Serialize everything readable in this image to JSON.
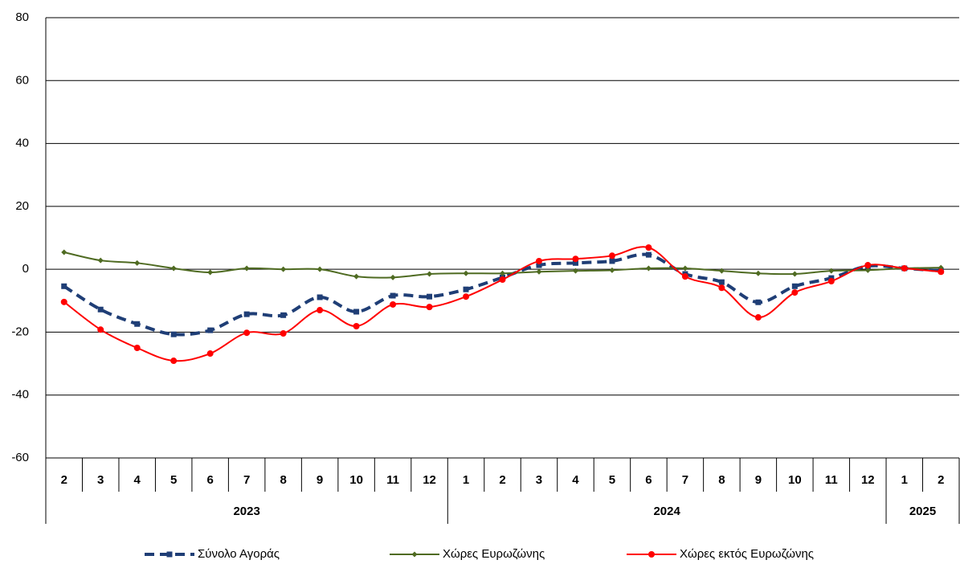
{
  "chart_data": {
    "type": "line",
    "categories": [
      "2",
      "3",
      "4",
      "5",
      "6",
      "7",
      "8",
      "9",
      "10",
      "11",
      "12",
      "1",
      "2",
      "3",
      "4",
      "5",
      "6",
      "7",
      "8",
      "9",
      "10",
      "11",
      "12",
      "1",
      "2"
    ],
    "x_groups": [
      "2023",
      "2024",
      "2025"
    ],
    "series": [
      {
        "name": "Σύνολο Αγοράς",
        "color": "#1f3e76",
        "marker": "square",
        "dash": true,
        "values": [
          -5.4,
          -12.8,
          -17.4,
          -20.7,
          -19.4,
          -14.3,
          -14.6,
          -8.9,
          -13.5,
          -8.4,
          -8.7,
          -6.4,
          -2.6,
          1.3,
          2.0,
          2.6,
          4.6,
          -1.5,
          -4.1,
          -10.5,
          -5.4,
          -2.8,
          1.0,
          0.3,
          -0.5
        ]
      },
      {
        "name": "Χώρες Ευρωζώνης",
        "color": "#4f6b22",
        "marker": "diamond",
        "dash": false,
        "values": [
          5.4,
          2.8,
          2.0,
          0.3,
          -1.0,
          0.3,
          0,
          0,
          -2.3,
          -2.6,
          -1.5,
          -1.3,
          -1.3,
          -0.8,
          -0.5,
          -0.3,
          0.3,
          0.3,
          -0.5,
          -1.3,
          -1.5,
          -0.5,
          -0.3,
          0.3,
          0.5
        ]
      },
      {
        "name": "Χώρες εκτός Ευρωζώνης",
        "color": "#ff0000",
        "marker": "circle",
        "dash": false,
        "values": [
          -10.4,
          -19.2,
          -25.0,
          -29.1,
          -26.8,
          -20.2,
          -20.4,
          -13.0,
          -18.1,
          -11.2,
          -12.0,
          -8.7,
          -3.3,
          2.6,
          3.3,
          4.3,
          6.9,
          -2.3,
          -5.9,
          -15.3,
          -7.4,
          -3.8,
          1.3,
          0.3,
          -0.8
        ]
      }
    ],
    "ylim": [
      -60,
      80
    ],
    "yticks": [
      -60,
      -40,
      -20,
      0,
      20,
      40,
      60,
      80
    ],
    "grid": true,
    "legend": "bottom"
  }
}
